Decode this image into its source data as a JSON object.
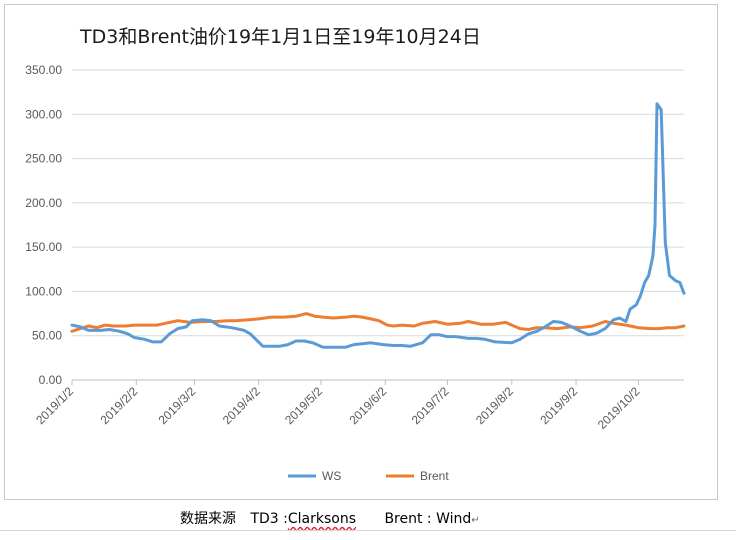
{
  "source_line": {
    "prefix": "数据来源",
    "td3": "TD3 :",
    "td3_source": "Clarksons",
    "brent": "Brent : Wind",
    "trail": "↵"
  },
  "chart_data": {
    "type": "line",
    "title": "TD3和Brent油价19年1月1日至19年10月24日",
    "xlabel": "",
    "ylabel": "",
    "ylim": [
      0,
      350
    ],
    "y_ticks": [
      "0.00",
      "50.00",
      "100.00",
      "150.00",
      "200.00",
      "250.00",
      "300.00",
      "350.00"
    ],
    "x_ticks": [
      "2019/1/2",
      "2019/2/2",
      "2019/3/2",
      "2019/4/2",
      "2019/5/2",
      "2019/6/2",
      "2019/7/2",
      "2019/8/2",
      "2019/9/2",
      "2019/10/2"
    ],
    "xlim": [
      "2019-01-02",
      "2019-10-24"
    ],
    "grid": "horizontal",
    "legend_position": "bottom",
    "series": [
      {
        "name": "WS",
        "color": "#5B9BD5",
        "points": [
          [
            "2019-01-02",
            62
          ],
          [
            "2019-01-06",
            60
          ],
          [
            "2019-01-10",
            56
          ],
          [
            "2019-01-16",
            56
          ],
          [
            "2019-01-20",
            57
          ],
          [
            "2019-01-25",
            55
          ],
          [
            "2019-01-29",
            52
          ],
          [
            "2019-02-01",
            48
          ],
          [
            "2019-02-06",
            46
          ],
          [
            "2019-02-10",
            43
          ],
          [
            "2019-02-14",
            43
          ],
          [
            "2019-02-18",
            52
          ],
          [
            "2019-02-22",
            58
          ],
          [
            "2019-02-26",
            60
          ],
          [
            "2019-03-01",
            67
          ],
          [
            "2019-03-06",
            68
          ],
          [
            "2019-03-10",
            67
          ],
          [
            "2019-03-14",
            61
          ],
          [
            "2019-03-20",
            59
          ],
          [
            "2019-03-26",
            56
          ],
          [
            "2019-03-29",
            52
          ],
          [
            "2019-04-01",
            45
          ],
          [
            "2019-04-04",
            38
          ],
          [
            "2019-04-08",
            38
          ],
          [
            "2019-04-12",
            38
          ],
          [
            "2019-04-16",
            40
          ],
          [
            "2019-04-20",
            44
          ],
          [
            "2019-04-24",
            44
          ],
          [
            "2019-04-28",
            42
          ],
          [
            "2019-05-03",
            37
          ],
          [
            "2019-05-08",
            37
          ],
          [
            "2019-05-14",
            37
          ],
          [
            "2019-05-18",
            40
          ],
          [
            "2019-05-22",
            41
          ],
          [
            "2019-05-26",
            42
          ],
          [
            "2019-06-01",
            40
          ],
          [
            "2019-06-06",
            39
          ],
          [
            "2019-06-10",
            39
          ],
          [
            "2019-06-14",
            38
          ],
          [
            "2019-06-20",
            42
          ],
          [
            "2019-06-24",
            51
          ],
          [
            "2019-06-28",
            51
          ],
          [
            "2019-07-02",
            49
          ],
          [
            "2019-07-06",
            49
          ],
          [
            "2019-07-12",
            47
          ],
          [
            "2019-07-16",
            47
          ],
          [
            "2019-07-20",
            46
          ],
          [
            "2019-07-25",
            43
          ],
          [
            "2019-08-02",
            42
          ],
          [
            "2019-08-06",
            46
          ],
          [
            "2019-08-10",
            52
          ],
          [
            "2019-08-14",
            55
          ],
          [
            "2019-08-18",
            60
          ],
          [
            "2019-08-22",
            66
          ],
          [
            "2019-08-26",
            65
          ],
          [
            "2019-08-31",
            60
          ],
          [
            "2019-09-04",
            55
          ],
          [
            "2019-09-08",
            51
          ],
          [
            "2019-09-12",
            53
          ],
          [
            "2019-09-16",
            58
          ],
          [
            "2019-09-20",
            68
          ],
          [
            "2019-09-23",
            70
          ],
          [
            "2019-09-26",
            66
          ],
          [
            "2019-09-28",
            80
          ],
          [
            "2019-10-01",
            85
          ],
          [
            "2019-10-03",
            95
          ],
          [
            "2019-10-05",
            110
          ],
          [
            "2019-10-07",
            118
          ],
          [
            "2019-10-09",
            140
          ],
          [
            "2019-10-10",
            175
          ],
          [
            "2019-10-11",
            312
          ],
          [
            "2019-10-13",
            305
          ],
          [
            "2019-10-15",
            155
          ],
          [
            "2019-10-17",
            118
          ],
          [
            "2019-10-20",
            112
          ],
          [
            "2019-10-22",
            110
          ],
          [
            "2019-10-24",
            98
          ]
        ]
      },
      {
        "name": "Brent",
        "color": "#ED7D31",
        "points": [
          [
            "2019-01-02",
            55
          ],
          [
            "2019-01-06",
            58
          ],
          [
            "2019-01-10",
            61
          ],
          [
            "2019-01-14",
            59
          ],
          [
            "2019-01-18",
            62
          ],
          [
            "2019-01-22",
            61
          ],
          [
            "2019-01-28",
            61
          ],
          [
            "2019-02-01",
            62
          ],
          [
            "2019-02-06",
            62
          ],
          [
            "2019-02-12",
            62
          ],
          [
            "2019-02-16",
            64
          ],
          [
            "2019-02-22",
            67
          ],
          [
            "2019-02-28",
            65
          ],
          [
            "2019-03-06",
            66
          ],
          [
            "2019-03-12",
            66
          ],
          [
            "2019-03-18",
            67
          ],
          [
            "2019-03-22",
            67
          ],
          [
            "2019-03-28",
            68
          ],
          [
            "2019-04-02",
            69
          ],
          [
            "2019-04-08",
            71
          ],
          [
            "2019-04-14",
            71
          ],
          [
            "2019-04-20",
            72
          ],
          [
            "2019-04-25",
            75
          ],
          [
            "2019-04-29",
            72
          ],
          [
            "2019-05-03",
            71
          ],
          [
            "2019-05-08",
            70
          ],
          [
            "2019-05-14",
            71
          ],
          [
            "2019-05-18",
            72
          ],
          [
            "2019-05-22",
            71
          ],
          [
            "2019-05-26",
            69
          ],
          [
            "2019-05-30",
            67
          ],
          [
            "2019-06-03",
            62
          ],
          [
            "2019-06-06",
            61
          ],
          [
            "2019-06-10",
            62
          ],
          [
            "2019-06-16",
            61
          ],
          [
            "2019-06-20",
            64
          ],
          [
            "2019-06-26",
            66
          ],
          [
            "2019-07-02",
            63
          ],
          [
            "2019-07-08",
            64
          ],
          [
            "2019-07-12",
            66
          ],
          [
            "2019-07-18",
            63
          ],
          [
            "2019-07-24",
            63
          ],
          [
            "2019-07-30",
            65
          ],
          [
            "2019-08-02",
            62
          ],
          [
            "2019-08-06",
            58
          ],
          [
            "2019-08-10",
            57
          ],
          [
            "2019-08-14",
            59
          ],
          [
            "2019-08-18",
            59
          ],
          [
            "2019-08-24",
            58
          ],
          [
            "2019-08-30",
            60
          ],
          [
            "2019-09-04",
            59
          ],
          [
            "2019-09-10",
            61
          ],
          [
            "2019-09-16",
            66
          ],
          [
            "2019-09-20",
            64
          ],
          [
            "2019-09-26",
            62
          ],
          [
            "2019-10-02",
            59
          ],
          [
            "2019-10-08",
            58
          ],
          [
            "2019-10-12",
            58
          ],
          [
            "2019-10-16",
            59
          ],
          [
            "2019-10-20",
            59
          ],
          [
            "2019-10-24",
            61
          ]
        ]
      }
    ]
  }
}
